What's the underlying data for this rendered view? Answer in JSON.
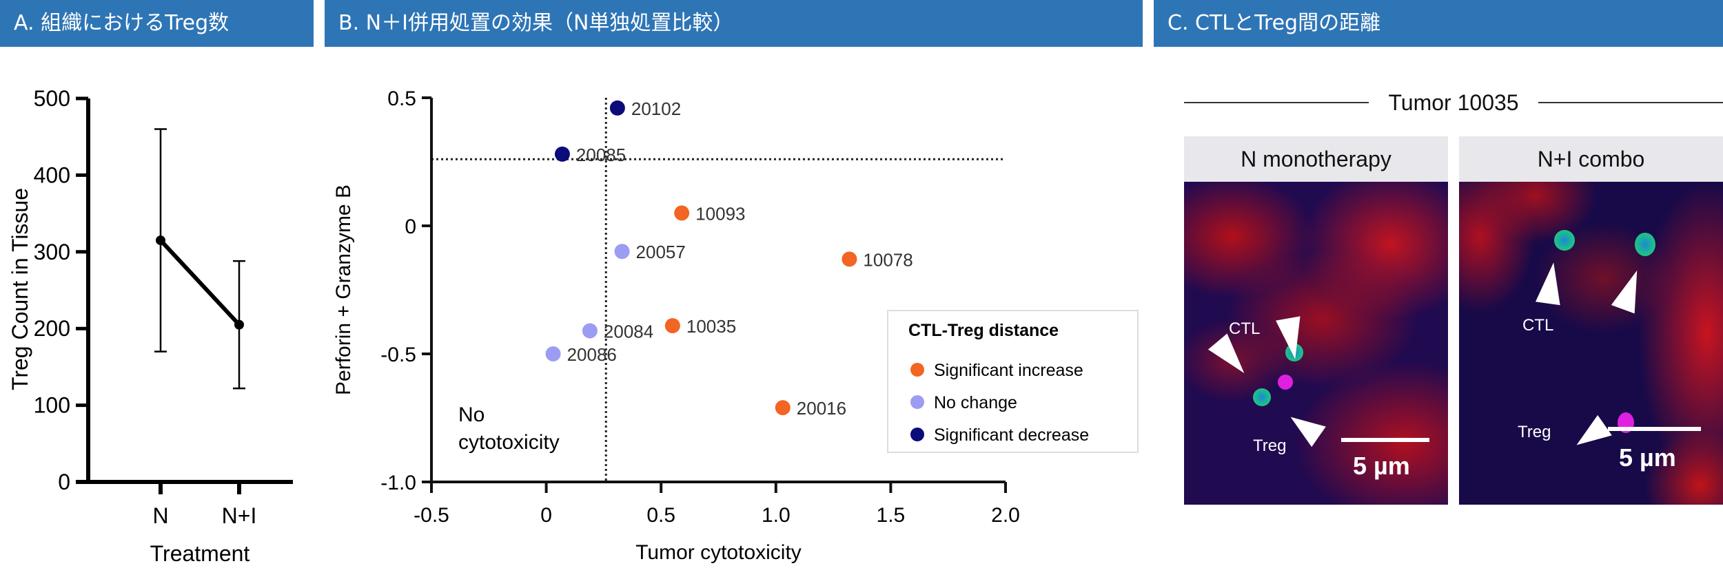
{
  "headers": {
    "a": "A. 組織におけるTreg数",
    "b": "B. N＋I併用処置の効果（N単独処置比較）",
    "c": "C. CTLとTreg間の距離"
  },
  "chart_data": [
    {
      "type": "line",
      "categories": [
        "N",
        "N+I"
      ],
      "values": [
        315,
        205
      ],
      "error_low": [
        170,
        122
      ],
      "error_high": [
        460,
        288
      ],
      "xlabel": "Treatment",
      "ylabel": "Treg Count in Tissue",
      "ylim": [
        0,
        500
      ],
      "yticks": [
        "0",
        "100",
        "200",
        "300",
        "400",
        "500"
      ],
      "color": "#000000"
    },
    {
      "type": "scatter",
      "xlabel": "Tumor cytotoxicity",
      "ylabel": "Perforin + Granzyme B",
      "xlim": [
        -0.5,
        2.0
      ],
      "ylim": [
        -1.0,
        0.5
      ],
      "xticks": [
        "-0.5",
        "0",
        "0.5",
        "1.0",
        "1.5",
        "2.0"
      ],
      "yticks": [
        "-1.0",
        "-0.5",
        "0",
        "0.5"
      ],
      "threshold_x": 0.26,
      "threshold_y": 0.26,
      "annotation": [
        "No",
        "cytotoxicity"
      ],
      "legend": {
        "title": "CTL-Treg distance",
        "placement": "bottom-right",
        "entries": [
          {
            "key": "inc",
            "label": "Significant increase",
            "color": "#f26522"
          },
          {
            "key": "nc",
            "label": "No change",
            "color": "#9b9cf2"
          },
          {
            "key": "dec",
            "label": "Significant decrease",
            "color": "#0b0b7a"
          }
        ]
      },
      "points": [
        {
          "label": "20102",
          "x": 0.31,
          "y": 0.46,
          "group": "dec"
        },
        {
          "label": "20085",
          "x": 0.07,
          "y": 0.28,
          "group": "dec"
        },
        {
          "label": "10093",
          "x": 0.59,
          "y": 0.05,
          "group": "inc"
        },
        {
          "label": "20057",
          "x": 0.33,
          "y": -0.1,
          "group": "nc"
        },
        {
          "label": "10078",
          "x": 1.32,
          "y": -0.13,
          "group": "inc"
        },
        {
          "label": "10035",
          "x": 0.55,
          "y": -0.39,
          "group": "inc"
        },
        {
          "label": "20084",
          "x": 0.19,
          "y": -0.41,
          "group": "nc"
        },
        {
          "label": "20086",
          "x": 0.03,
          "y": -0.5,
          "group": "nc"
        },
        {
          "label": "20016",
          "x": 1.03,
          "y": -0.71,
          "group": "inc"
        }
      ]
    }
  ],
  "panel_c": {
    "title": "Tumor 10035",
    "panes": [
      {
        "label": "N monotherapy",
        "ctl": "CTL",
        "treg": "Treg",
        "scale": "5 µm"
      },
      {
        "label": "N+I combo",
        "ctl": "CTL",
        "treg": "Treg",
        "scale": "5 µm"
      }
    ]
  },
  "colors": {
    "header": "#2e75b6"
  }
}
